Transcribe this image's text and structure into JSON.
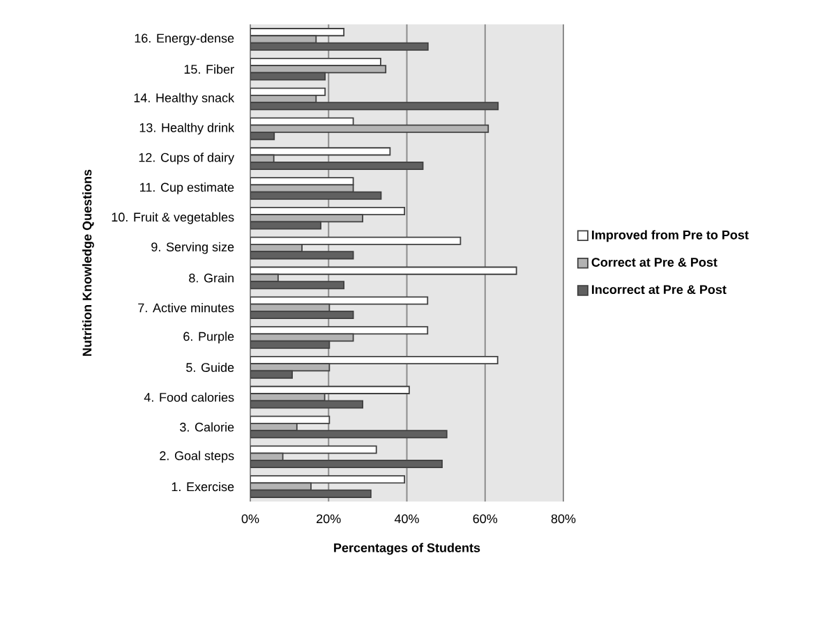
{
  "chart_data": {
    "type": "bar",
    "orientation": "horizontal",
    "xlabel": "Percentages of Students",
    "ylabel": "Nutrition Knowledge Questions",
    "categories": [
      "16. Energy-dense",
      "15. Fiber",
      "14. Healthy snack",
      "13. Healthy drink",
      "12. Cups of dairy",
      "11. Cup estimate",
      "10. Fruit & vegetables",
      "9. Serving size",
      "8. Grain",
      "7. Active minutes",
      "6. Purple",
      "5. Guide",
      "4. Food calories",
      "3. Calorie",
      "2. Goal steps",
      "1. Exercise"
    ],
    "series": [
      {
        "name": "Improved from Pre to Post",
        "color": "#ffffff",
        "values": [
          23.9,
          33.3,
          19.1,
          26.3,
          35.7,
          26.3,
          39.4,
          53.7,
          68.0,
          45.3,
          45.3,
          63.2,
          40.6,
          20.2,
          32.2,
          39.4
        ]
      },
      {
        "name": "Correct at Pre & Post",
        "color": "#b3b3b3",
        "values": [
          16.8,
          34.6,
          16.8,
          60.8,
          6.0,
          26.3,
          28.7,
          13.2,
          7.1,
          20.2,
          26.3,
          20.2,
          19.0,
          11.9,
          8.3,
          15.5
        ]
      },
      {
        "name": "Incorrect at Pre & Post",
        "color": "#606060",
        "values": [
          45.4,
          19.1,
          63.3,
          6.1,
          44.1,
          33.4,
          18.0,
          26.3,
          23.9,
          26.3,
          20.2,
          10.7,
          28.7,
          50.2,
          49.0,
          30.8
        ]
      }
    ],
    "xlim": [
      0,
      80
    ],
    "xticks": [
      {
        "value": 0,
        "label": "0%"
      },
      {
        "value": 20,
        "label": "20%"
      },
      {
        "value": 40,
        "label": "40%"
      },
      {
        "value": 60,
        "label": "60%"
      },
      {
        "value": 80,
        "label": "80%"
      }
    ],
    "grid": "x",
    "legend": "right"
  }
}
